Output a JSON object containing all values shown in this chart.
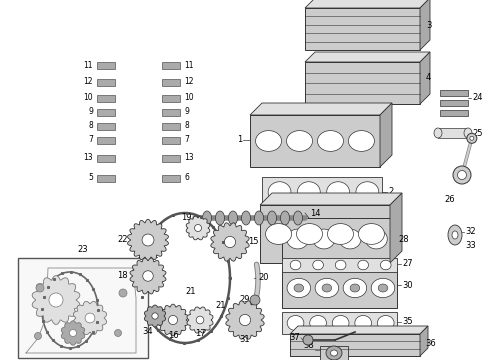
{
  "bg_color": "#ffffff",
  "fig_width": 4.9,
  "fig_height": 3.6,
  "dpi": 100,
  "line_color": "#333333",
  "gray_dark": "#888888",
  "gray_mid": "#aaaaaa",
  "gray_light": "#cccccc",
  "gray_lighter": "#e0e0e0"
}
